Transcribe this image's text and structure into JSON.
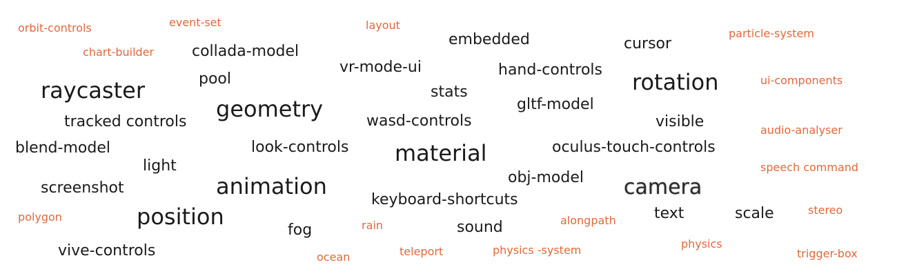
{
  "words": {
    "orbit_controls": "orbit-controls",
    "event_set": "event-set",
    "layout": "layout",
    "particle_system": "particle-system",
    "chart_builder": "chart-builder",
    "collada_model": "collada-model",
    "embedded": "embedded",
    "cursor": "cursor",
    "vr_mode_ui": "vr-mode-ui",
    "hand_controls": "hand-controls",
    "pool": "pool",
    "raycaster": "raycaster",
    "rotation": "rotation",
    "ui_components": "ui-components",
    "stats": "stats",
    "geometry": "geometry",
    "gltf_model": "gltf-model",
    "tracked_controls": "tracked controls",
    "wasd_controls": "wasd-controls",
    "visible": "visible",
    "audio_analyser": "audio-analyser",
    "blend_model": "blend-model",
    "look_controls": "look-controls",
    "material": "material",
    "oculus_touch_controls": "oculus-touch-controls",
    "light": "light",
    "speech_command": "speech command",
    "obj_model": "obj-model",
    "screenshot": "screenshot",
    "animation": "animation",
    "camera": "camera",
    "keyboard_shortcuts": "keyboard-shortcuts",
    "position": "position",
    "polygon": "polygon",
    "text": "text",
    "stereo": "stereo",
    "scale": "scale",
    "alongpath": "alongpath",
    "rain": "rain",
    "sound": "sound",
    "fog": "fog",
    "physics": "physics",
    "vive_controls": "vive-controls",
    "teleport": "teleport",
    "physics_system": "physics -system",
    "trigger_box": "trigger-box",
    "ocean": "ocean"
  },
  "colors": {
    "dark": "#1a1a1a",
    "accent": "#e0683a",
    "background": "#ffffff"
  }
}
